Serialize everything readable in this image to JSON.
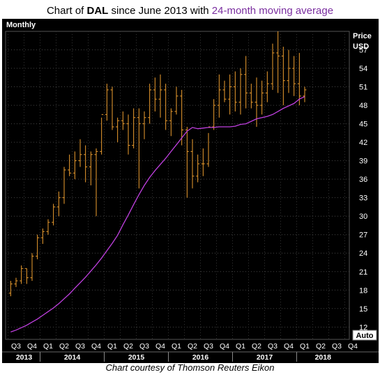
{
  "title": {
    "prefix": "Chart of ",
    "ticker": "DAL",
    "middle": " since June 2013 with ",
    "highlight": "24-month moving average"
  },
  "footer": "Chart courtesy of Thomson Reuters Eikon",
  "chart_data": {
    "type": "ohlc-bar",
    "frequency_label": "Monthly",
    "price_label": "Price",
    "currency_label": "USD",
    "auto_label": "Auto",
    "ylim": [
      10,
      60
    ],
    "y_ticks": [
      12,
      15,
      18,
      21,
      24,
      27,
      30,
      33,
      36,
      39,
      42,
      45,
      48,
      51,
      54,
      57
    ],
    "quarter_labels": [
      "Q3",
      "Q4",
      "Q1",
      "Q2",
      "Q3",
      "Q4",
      "Q1",
      "Q2",
      "Q3",
      "Q4",
      "Q1",
      "Q2",
      "Q3",
      "Q4",
      "Q1",
      "Q2",
      "Q3",
      "Q4",
      "Q1",
      "Q2",
      "Q3",
      "Q4"
    ],
    "year_labels": [
      {
        "label": "2013",
        "start_q": 0,
        "end_q": 2
      },
      {
        "label": "2014",
        "start_q": 2,
        "end_q": 6
      },
      {
        "label": "2015",
        "start_q": 6,
        "end_q": 10
      },
      {
        "label": "2016",
        "start_q": 10,
        "end_q": 14
      },
      {
        "label": "2017",
        "start_q": 14,
        "end_q": 18
      },
      {
        "label": "2018",
        "start_q": 18,
        "end_q": 22
      }
    ],
    "bar_color": "#f0a030",
    "ma_color": "#c040e0",
    "series": [
      {
        "name": "DAL",
        "type": "ohlc",
        "values": [
          [
            17.5,
            19.5,
            17.0,
            19.0
          ],
          [
            19.0,
            20.0,
            18.5,
            19.5
          ],
          [
            19.5,
            22.0,
            19.0,
            21.5
          ],
          [
            21.5,
            21.5,
            19.0,
            20.0
          ],
          [
            20.0,
            24.0,
            19.5,
            23.5
          ],
          [
            23.5,
            27.0,
            23.0,
            26.5
          ],
          [
            26.5,
            28.0,
            25.5,
            27.5
          ],
          [
            27.5,
            29.5,
            27.0,
            29.0
          ],
          [
            29.0,
            32.0,
            28.5,
            31.5
          ],
          [
            31.5,
            34.0,
            30.0,
            33.0
          ],
          [
            33.0,
            38.0,
            32.0,
            37.5
          ],
          [
            37.5,
            40.0,
            36.5,
            37.0
          ],
          [
            37.0,
            40.5,
            36.0,
            39.0
          ],
          [
            39.0,
            42.5,
            38.0,
            40.0
          ],
          [
            40.0,
            41.5,
            35.5,
            38.0
          ],
          [
            38.0,
            40.5,
            35.0,
            40.0
          ],
          [
            40.0,
            41.0,
            30.0,
            40.5
          ],
          [
            40.5,
            46.0,
            40.0,
            46.5
          ],
          [
            46.5,
            51.5,
            45.5,
            50.5
          ],
          [
            50.5,
            51.0,
            44.0,
            44.5
          ],
          [
            44.5,
            46.0,
            42.0,
            45.5
          ],
          [
            45.5,
            47.0,
            44.0,
            45.0
          ],
          [
            45.0,
            46.5,
            40.0,
            41.5
          ],
          [
            41.5,
            47.5,
            41.0,
            46.0
          ],
          [
            46.0,
            47.5,
            34.5,
            45.0
          ],
          [
            45.0,
            47.0,
            42.5,
            46.0
          ],
          [
            46.0,
            51.5,
            45.0,
            50.5
          ],
          [
            50.5,
            52.5,
            47.0,
            49.0
          ],
          [
            49.0,
            53.0,
            46.0,
            50.5
          ],
          [
            50.5,
            51.5,
            44.0,
            45.5
          ],
          [
            45.5,
            47.5,
            43.0,
            47.0
          ],
          [
            47.0,
            51.0,
            46.5,
            49.5
          ],
          [
            49.5,
            50.5,
            41.5,
            44.0
          ],
          [
            44.0,
            44.5,
            33.0,
            40.5
          ],
          [
            40.5,
            42.5,
            34.5,
            36.5
          ],
          [
            36.5,
            40.0,
            35.5,
            38.5
          ],
          [
            38.5,
            41.0,
            36.5,
            38.5
          ],
          [
            38.5,
            43.5,
            38.0,
            44.5
          ],
          [
            44.5,
            49.0,
            44.0,
            48.0
          ],
          [
            48.0,
            53.0,
            46.0,
            50.5
          ],
          [
            50.5,
            52.0,
            48.5,
            49.0
          ],
          [
            49.0,
            53.0,
            46.5,
            51.0
          ],
          [
            51.0,
            53.5,
            47.0,
            48.5
          ],
          [
            48.5,
            54.0,
            46.5,
            53.0
          ],
          [
            53.0,
            56.0,
            47.5,
            50.0
          ],
          [
            50.0,
            51.5,
            47.5,
            48.5
          ],
          [
            48.5,
            52.5,
            44.5,
            48.0
          ],
          [
            48.0,
            52.0,
            46.5,
            50.0
          ],
          [
            50.0,
            53.5,
            48.5,
            51.5
          ],
          [
            51.5,
            58.0,
            50.5,
            56.5
          ],
          [
            56.5,
            60.0,
            50.0,
            56.0
          ],
          [
            56.0,
            57.5,
            48.0,
            52.0
          ],
          [
            52.0,
            57.0,
            50.0,
            54.0
          ],
          [
            54.0,
            56.0,
            49.5,
            51.5
          ],
          [
            51.5,
            56.5,
            48.0,
            49.5
          ],
          [
            49.5,
            51.0,
            48.5,
            50.5
          ]
        ]
      },
      {
        "name": "24-month moving average",
        "type": "line",
        "values": [
          11.2,
          11.5,
          11.9,
          12.3,
          12.8,
          13.3,
          13.9,
          14.5,
          15.1,
          15.8,
          16.6,
          17.4,
          18.3,
          19.2,
          20.1,
          21.1,
          22.1,
          23.2,
          24.4,
          25.6,
          26.9,
          28.6,
          30.2,
          31.9,
          33.5,
          35.0,
          36.3,
          37.4,
          38.4,
          39.4,
          40.5,
          41.6,
          42.7,
          43.8,
          44.4,
          44.2,
          44.3,
          44.4,
          44.4,
          44.5,
          44.5,
          44.5,
          44.6,
          44.9,
          45.0,
          45.4,
          45.8,
          46.0,
          46.2,
          46.5,
          47.0,
          47.5,
          47.9,
          48.3,
          49.0,
          49.4
        ]
      }
    ]
  }
}
